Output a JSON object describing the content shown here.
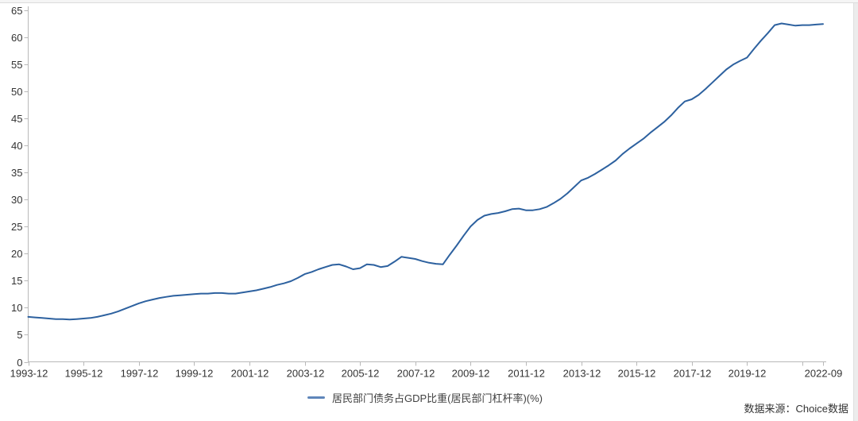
{
  "chrome": {
    "top_border_color": "#f5f5f5",
    "scrollbar_color": "#ececec"
  },
  "chart_data": {
    "type": "line",
    "title": "",
    "xlabel": "",
    "ylabel": "",
    "grid": false,
    "legend_position": "bottom-center",
    "ylim": [
      0,
      65
    ],
    "y_ticks": [
      0,
      5,
      10,
      15,
      20,
      25,
      30,
      35,
      40,
      45,
      50,
      55,
      60,
      65
    ],
    "x_ticks": [
      {
        "date": "1993-12",
        "label": "1993-12"
      },
      {
        "date": "1995-12",
        "label": "1995-12"
      },
      {
        "date": "1997-12",
        "label": "1997-12"
      },
      {
        "date": "1999-12",
        "label": "1999-12"
      },
      {
        "date": "2001-12",
        "label": "2001-12"
      },
      {
        "date": "2003-12",
        "label": "2003-12"
      },
      {
        "date": "2005-12",
        "label": "2005-12"
      },
      {
        "date": "2007-12",
        "label": "2007-12"
      },
      {
        "date": "2009-12",
        "label": "2009-12"
      },
      {
        "date": "2011-12",
        "label": "2011-12"
      },
      {
        "date": "2013-12",
        "label": "2013-12"
      },
      {
        "date": "2015-12",
        "label": "2015-12"
      },
      {
        "date": "2017-12",
        "label": "2017-12"
      },
      {
        "date": "2019-12",
        "label": "2019-12"
      },
      {
        "date": "2021-12",
        "label": ""
      },
      {
        "date": "2022-09",
        "label": "2022-09"
      }
    ],
    "series": [
      {
        "name": "居民部门债务占GDP比重(居民部门杠杆率)(%)",
        "color": "#2d619f",
        "dates": [
          "1993-12",
          "1994-03",
          "1994-06",
          "1994-09",
          "1994-12",
          "1995-03",
          "1995-06",
          "1995-09",
          "1995-12",
          "1996-03",
          "1996-06",
          "1996-09",
          "1996-12",
          "1997-03",
          "1997-06",
          "1997-09",
          "1997-12",
          "1998-03",
          "1998-06",
          "1998-09",
          "1998-12",
          "1999-03",
          "1999-06",
          "1999-09",
          "1999-12",
          "2000-03",
          "2000-06",
          "2000-09",
          "2000-12",
          "2001-03",
          "2001-06",
          "2001-09",
          "2001-12",
          "2002-03",
          "2002-06",
          "2002-09",
          "2002-12",
          "2003-03",
          "2003-06",
          "2003-09",
          "2003-12",
          "2004-03",
          "2004-06",
          "2004-09",
          "2004-12",
          "2005-03",
          "2005-06",
          "2005-09",
          "2005-12",
          "2006-03",
          "2006-06",
          "2006-09",
          "2006-12",
          "2007-03",
          "2007-06",
          "2007-09",
          "2007-12",
          "2008-03",
          "2008-06",
          "2008-09",
          "2008-12",
          "2009-03",
          "2009-06",
          "2009-09",
          "2009-12",
          "2010-03",
          "2010-06",
          "2010-09",
          "2010-12",
          "2011-03",
          "2011-06",
          "2011-09",
          "2011-12",
          "2012-03",
          "2012-06",
          "2012-09",
          "2012-12",
          "2013-03",
          "2013-06",
          "2013-09",
          "2013-12",
          "2014-03",
          "2014-06",
          "2014-09",
          "2014-12",
          "2015-03",
          "2015-06",
          "2015-09",
          "2015-12",
          "2016-03",
          "2016-06",
          "2016-09",
          "2016-12",
          "2017-03",
          "2017-06",
          "2017-09",
          "2017-12",
          "2018-03",
          "2018-06",
          "2018-09",
          "2018-12",
          "2019-03",
          "2019-06",
          "2019-09",
          "2019-12",
          "2020-03",
          "2020-06",
          "2020-09",
          "2020-12",
          "2021-03",
          "2021-06",
          "2021-09",
          "2021-12",
          "2022-03",
          "2022-06",
          "2022-09"
        ],
        "values": [
          8.3,
          8.2,
          8.1,
          8.0,
          7.9,
          7.9,
          7.8,
          7.9,
          8.0,
          8.1,
          8.3,
          8.6,
          8.9,
          9.3,
          9.8,
          10.3,
          10.8,
          11.2,
          11.5,
          11.8,
          12.0,
          12.2,
          12.3,
          12.4,
          12.5,
          12.6,
          12.6,
          12.7,
          12.7,
          12.6,
          12.6,
          12.8,
          13.0,
          13.2,
          13.5,
          13.8,
          14.2,
          14.5,
          14.9,
          15.5,
          16.2,
          16.6,
          17.1,
          17.5,
          17.9,
          18.0,
          17.6,
          17.1,
          17.3,
          18.0,
          17.9,
          17.5,
          17.7,
          18.5,
          19.4,
          19.2,
          19.0,
          18.6,
          18.3,
          18.1,
          18.0,
          19.8,
          21.5,
          23.3,
          25.0,
          26.2,
          27.0,
          27.3,
          27.5,
          27.8,
          28.2,
          28.3,
          28.0,
          28.0,
          28.2,
          28.6,
          29.3,
          30.1,
          31.1,
          32.3,
          33.5,
          34.0,
          34.7,
          35.5,
          36.3,
          37.2,
          38.4,
          39.4,
          40.3,
          41.2,
          42.3,
          43.3,
          44.3,
          45.5,
          46.9,
          48.1,
          48.5,
          49.3,
          50.4,
          51.6,
          52.8,
          54.0,
          54.9,
          55.6,
          56.2,
          57.8,
          59.3,
          60.7,
          62.2,
          62.5,
          62.3,
          62.1,
          62.2,
          62.2,
          62.3,
          62.4
        ]
      }
    ],
    "axis_color": "#b9b9b9",
    "tick_label_color": "#333333"
  },
  "legend": {
    "label": "居民部门债务占GDP比重(居民部门杠杆率)(%)",
    "marker_color": "#5f86ba"
  },
  "footer": {
    "source_label": "数据来源：Choice数据"
  }
}
